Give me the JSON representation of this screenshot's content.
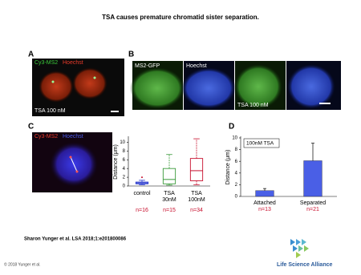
{
  "title": "TSA causes premature chromatid sister separation.",
  "panels": {
    "A": {
      "label": "A",
      "channels": [
        "Cy3-MS2",
        "Hoechst"
      ],
      "annotation": "TSA 100 nM"
    },
    "B": {
      "label": "B",
      "channels": [
        "MS2-GFP",
        "Hoechst"
      ],
      "annotation": "TSA 100 nM"
    },
    "C": {
      "label": "C",
      "channels": [
        "Cy3-MS2",
        "Hoechst"
      ]
    },
    "D": {
      "label": "D"
    }
  },
  "chart_data": [
    {
      "type": "box",
      "ylabel": "Distance (μm)",
      "ylim": [
        0,
        11
      ],
      "yticks": [
        0,
        2,
        4,
        6,
        8,
        10
      ],
      "categories": [
        [
          "control"
        ],
        [
          "TSA",
          "30nM"
        ],
        [
          "TSA",
          "100nM"
        ]
      ],
      "n_labels": [
        "n=16",
        "n=15",
        "n=34"
      ],
      "boxes": [
        {
          "color": "#2233cc",
          "whisker_low": 0.3,
          "q1": 0.5,
          "median": 0.7,
          "q3": 0.9,
          "whisker_high": 1.3,
          "fliers": [
            2.0
          ]
        },
        {
          "color": "#3a9a3a",
          "whisker_low": 0.2,
          "q1": 0.5,
          "median": 1.5,
          "q3": 4.0,
          "whisker_high": 7.2,
          "fliers": []
        },
        {
          "color": "#c8102e",
          "whisker_low": 0.3,
          "q1": 1.2,
          "median": 3.5,
          "q3": 6.3,
          "whisker_high": 10.8,
          "fliers": []
        }
      ]
    },
    {
      "type": "bar",
      "ylabel": "Distance (μm)",
      "ylim": [
        0,
        10
      ],
      "yticks": [
        0,
        2,
        4,
        6,
        8,
        10
      ],
      "legend": "100nM TSA",
      "categories": [
        "Attached",
        "Separated"
      ],
      "n_labels": [
        "n=13",
        "n=21"
      ],
      "values": [
        1.0,
        6.1
      ],
      "errors": [
        0.35,
        3.0
      ],
      "color": "#4a5fe6"
    }
  ],
  "citation": "Sharon Yunger et al. LSA 2018;1:e201800086",
  "copyright": "© 2018 Yunger et al.",
  "logo": "Life Science Alliance"
}
